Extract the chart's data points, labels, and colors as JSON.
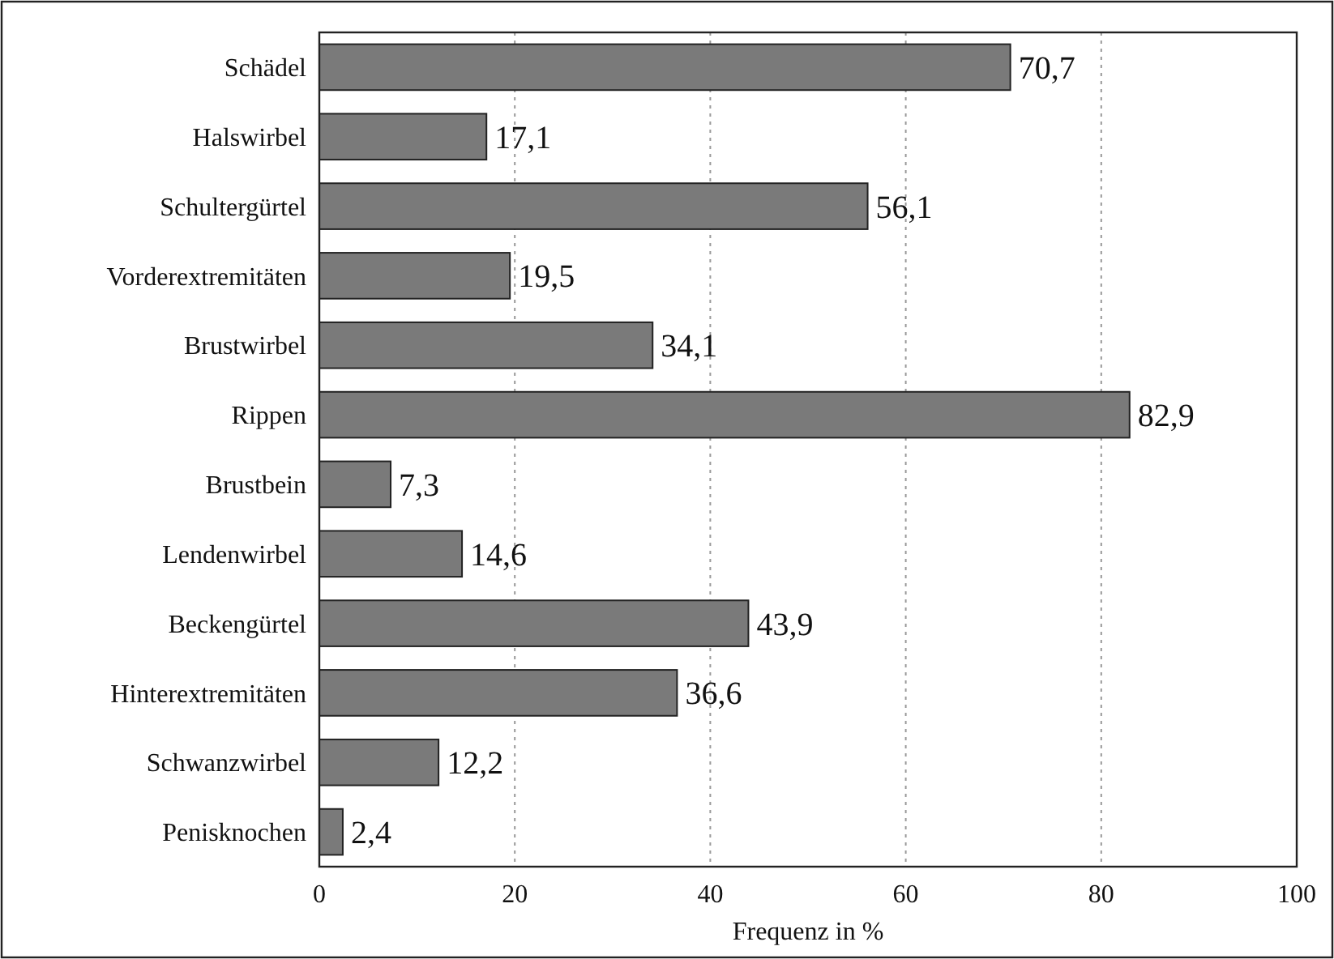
{
  "chart_data": {
    "type": "bar",
    "orientation": "horizontal",
    "xlabel": "Frequenz in %",
    "categories": [
      "Schädel",
      "Halswirbel",
      "Schultergürtel",
      "Vorderextremitäten",
      "Brustwirbel",
      "Rippen",
      "Brustbein",
      "Lendenwirbel",
      "Beckengürtel",
      "Hinterextremitäten",
      "Schwanzwirbel",
      "Penisknochen"
    ],
    "values": [
      70.7,
      17.1,
      56.1,
      19.5,
      34.1,
      82.9,
      7.3,
      14.6,
      43.9,
      36.6,
      12.2,
      2.4
    ],
    "value_labels": [
      "70,7",
      "17,1",
      "56,1",
      "19,5",
      "34,1",
      "82,9",
      "7,3",
      "14,6",
      "43,9",
      "36,6",
      "12,2",
      "2,4"
    ],
    "color": "#7a7a7a",
    "xlim": [
      0,
      100
    ],
    "xticks": [
      0,
      20,
      40,
      60,
      80,
      100
    ],
    "grid": "x"
  }
}
